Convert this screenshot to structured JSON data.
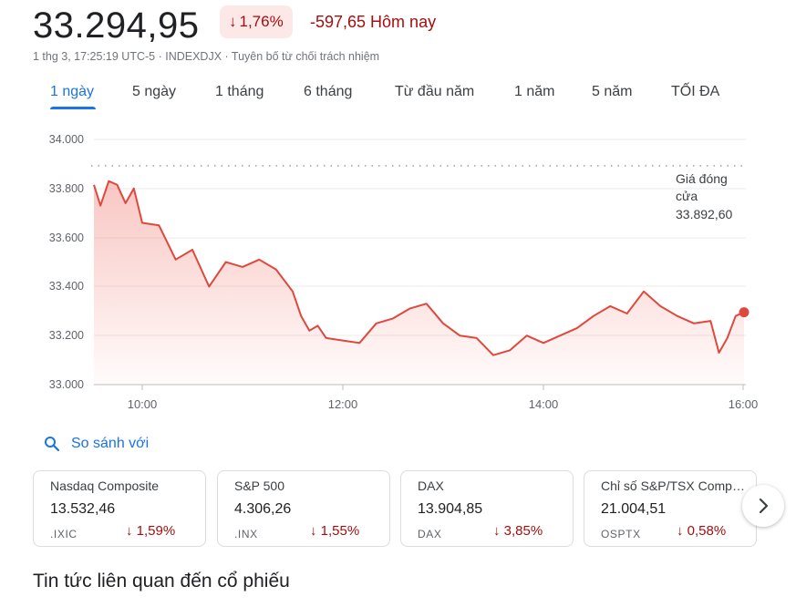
{
  "header": {
    "price": "33.294,95",
    "change_pct": "1,76%",
    "change_abs": "-597,65 Hôm nay",
    "meta": "1 thg 3, 17:25:19 UTC-5 · INDEXDJX · Tuyên bố từ chối trách nhiệm"
  },
  "tabs": [
    "1 ngày",
    "5 ngày",
    "1 tháng",
    "6 tháng",
    "Từ đầu năm",
    "1 năm",
    "5 năm",
    "TỐI ĐA"
  ],
  "colors": {
    "down": "#a50e0e",
    "line": "#e0483d",
    "accent": "#1a73e8"
  },
  "chart_data": {
    "type": "line",
    "y_ticks": [
      "34.000",
      "33.800",
      "33.600",
      "33.400",
      "33.200",
      "33.000"
    ],
    "x_ticks": [
      "10:00",
      "12:00",
      "14:00",
      "16:00"
    ],
    "ylim": [
      33000,
      34000
    ],
    "prev_close_label_1": "Giá đóng",
    "prev_close_label_2": "cửa",
    "prev_close_value": "33.892,60",
    "prev_close": 33892.6,
    "series": [
      {
        "x": [
          "9:30",
          "9:35",
          "9:40",
          "9:45",
          "9:50",
          "9:55",
          "10:00",
          "10:10",
          "10:20",
          "10:30",
          "10:40",
          "10:50",
          "11:00",
          "11:10",
          "11:20",
          "11:30",
          "11:35",
          "11:40",
          "11:45",
          "11:50",
          "12:00",
          "12:10",
          "12:20",
          "12:30",
          "12:40",
          "12:50",
          "13:00",
          "13:10",
          "13:20",
          "13:30",
          "13:40",
          "13:50",
          "14:00",
          "14:10",
          "14:20",
          "14:30",
          "14:40",
          "14:50",
          "15:00",
          "15:10",
          "15:20",
          "15:30",
          "15:40",
          "15:45",
          "15:50",
          "15:55",
          "16:00"
        ],
        "y": [
          33815,
          33730,
          33830,
          33815,
          33740,
          33800,
          33660,
          33650,
          33510,
          33550,
          33400,
          33500,
          33480,
          33510,
          33470,
          33380,
          33280,
          33220,
          33240,
          33190,
          33180,
          33170,
          33250,
          33270,
          33310,
          33330,
          33250,
          33200,
          33190,
          33120,
          33140,
          33200,
          33170,
          33200,
          33230,
          33280,
          33320,
          33290,
          33380,
          33320,
          33280,
          33250,
          33260,
          33130,
          33190,
          33280,
          33295
        ]
      }
    ]
  },
  "compare": {
    "label": "So sánh với"
  },
  "cards": [
    {
      "name": "Nasdaq Composite",
      "value": "13.532,46",
      "symbol": ".IXIC",
      "change": "1,59%"
    },
    {
      "name": "S&P 500",
      "value": "4.306,26",
      "symbol": ".INX",
      "change": "1,55%"
    },
    {
      "name": "DAX",
      "value": "13.904,85",
      "symbol": "DAX",
      "change": "3,85%"
    },
    {
      "name": "Chỉ số S&P/TSX Comp…",
      "value": "21.004,51",
      "symbol": "OSPTX",
      "change": "0,58%"
    }
  ],
  "news": {
    "title": "Tin tức liên quan đến cổ phiếu"
  }
}
